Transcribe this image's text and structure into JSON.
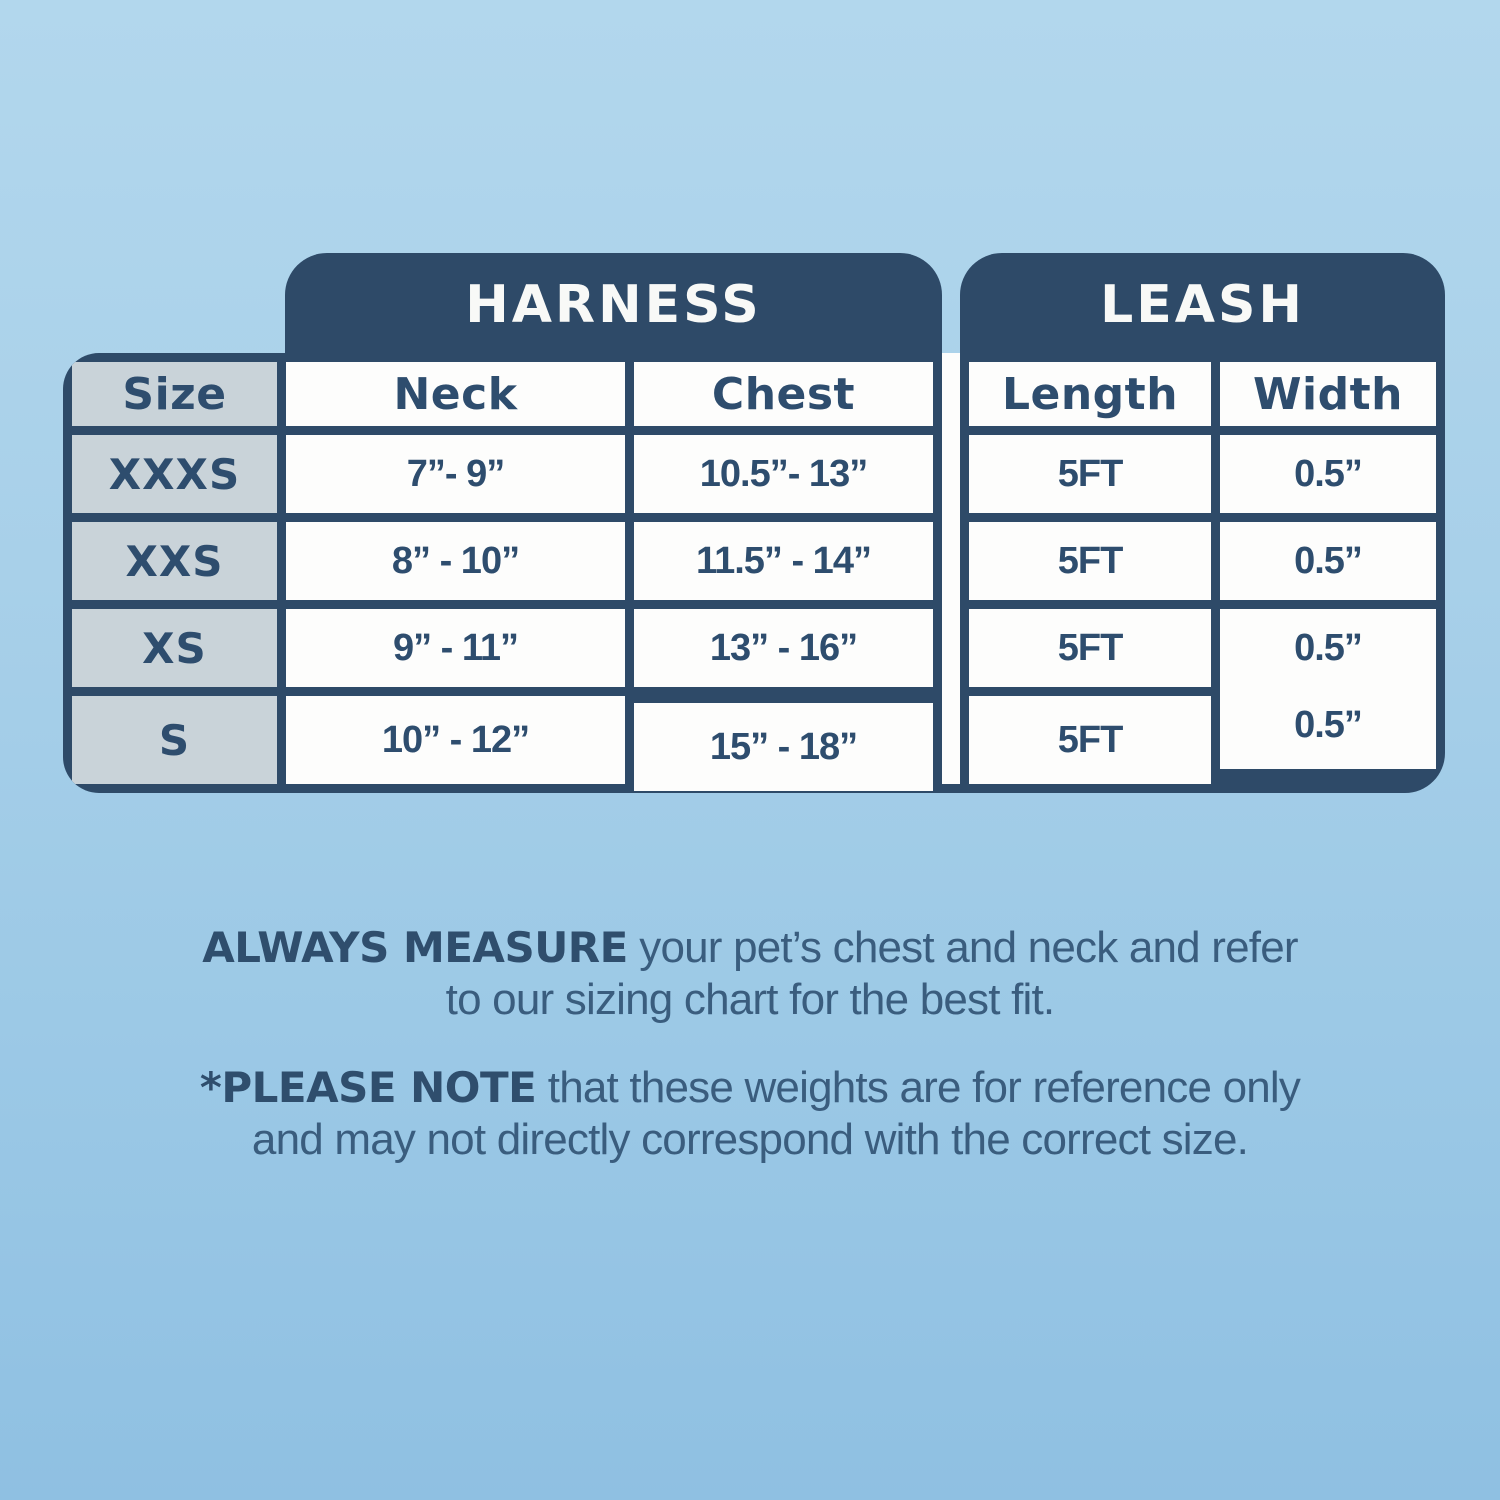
{
  "colors": {
    "navy": "#2e4a68",
    "table_text_navy": "#2e4d6e",
    "cell_white": "#fdfdfc",
    "size_column_bg": "#c9d3d9",
    "note_text": "#3a5d7e",
    "note_bold_text": "#2f4e6d",
    "background_top": "#b2d7ed",
    "background_bottom": "#8fc0e2",
    "tab_text": "#f8f9f7"
  },
  "chart_data": {
    "type": "table",
    "header_groups": [
      {
        "label": "HARNESS",
        "span": [
          "Neck",
          "Chest"
        ]
      },
      {
        "label": "LEASH",
        "span": [
          "Length",
          "Width"
        ]
      }
    ],
    "columns": [
      "Size",
      "Neck",
      "Chest",
      "Length",
      "Width"
    ],
    "rows": [
      [
        "XXXS",
        "7”- 9”",
        "10.5”- 13”",
        "5FT",
        "0.5”"
      ],
      [
        "XXS",
        "8” - 10”",
        "11.5” - 14”",
        "5FT",
        "0.5”"
      ],
      [
        "XS",
        "9” - 11”",
        "13” - 16”",
        "5FT",
        "0.5”"
      ],
      [
        "S",
        "10” - 12”",
        "15” - 18”",
        "5FT",
        "0.5”"
      ]
    ],
    "annotations": [
      {
        "bold": "ALWAYS MEASURE",
        "line1_rest": " your pet’s chest and neck and refer",
        "line2": "to our sizing chart for the best fit."
      },
      {
        "bold": "*PLEASE NOTE",
        "line1_rest": " that these weights are for reference only",
        "line2": "and may not directly correspond with the correct size."
      }
    ]
  }
}
